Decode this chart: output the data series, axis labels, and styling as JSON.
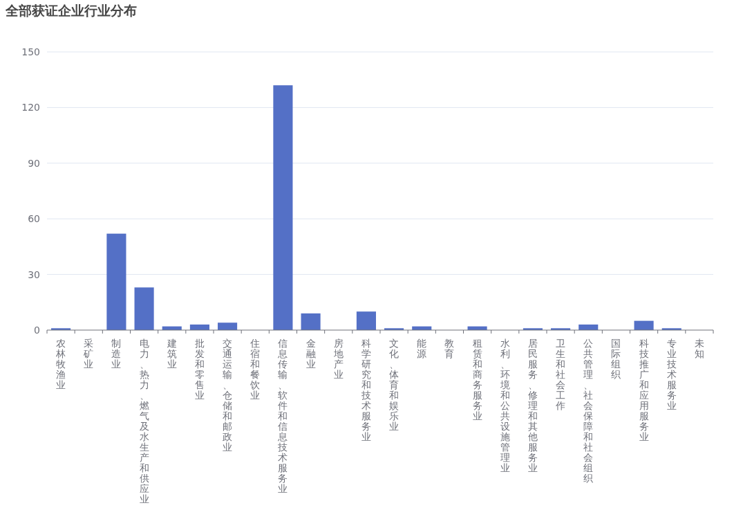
{
  "chart_data": {
    "type": "bar",
    "title": "全部获证企业行业分布",
    "categories": [
      "农林牧渔业",
      "采矿业",
      "制造业",
      "电力、热力、燃气及水生产和供应业",
      "建筑业",
      "批发和零售业",
      "交通运输、仓储和邮政业",
      "住宿和餐饮业",
      "信息传输、软件和信息技术服务业",
      "金融业",
      "房地产业",
      "科学研究和技术服务业",
      "文化、体育和娱乐业",
      "能源",
      "教育",
      "租赁和商务服务业",
      "水利、环境和公共设施管理业",
      "居民服务、修理和其他服务业",
      "卫生和社会工作",
      "公共管理、社会保障和社会组织",
      "国际组织",
      "科技推广和应用服务业",
      "专业技术服务业",
      "未知"
    ],
    "values": [
      1,
      0,
      52,
      23,
      2,
      3,
      4,
      0,
      132,
      9,
      0,
      10,
      1,
      2,
      0,
      2,
      0,
      1,
      1,
      3,
      0,
      5,
      1,
      0
    ],
    "color": "#5470c6",
    "ylim": [
      0,
      150
    ],
    "yticks": [
      0,
      30,
      60,
      90,
      120,
      150
    ],
    "grid": "y"
  }
}
